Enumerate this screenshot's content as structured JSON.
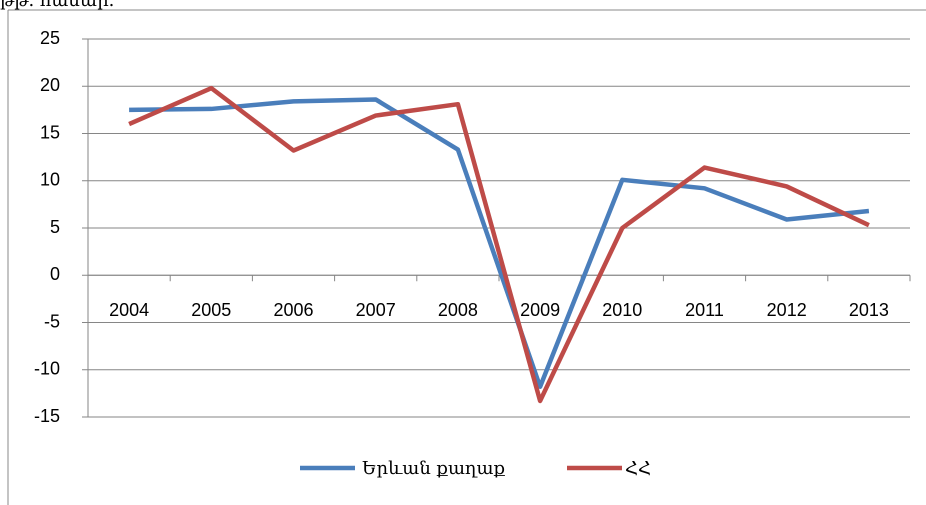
{
  "chart_data": {
    "type": "line",
    "title": "թթ. համար.",
    "categories": [
      "2004",
      "2005",
      "2006",
      "2007",
      "2008",
      "2009",
      "2010",
      "2011",
      "2012",
      "2013"
    ],
    "series": [
      {
        "name": "Երևան քաղաք",
        "color": "#4a7ebb",
        "values": [
          17.5,
          17.6,
          18.4,
          18.6,
          13.3,
          -11.8,
          10.1,
          9.2,
          5.9,
          6.8
        ]
      },
      {
        "name": "ՀՀ",
        "color": "#be4b48",
        "values": [
          16,
          19.8,
          13.2,
          16.9,
          18.1,
          -13.3,
          5,
          11.4,
          9.4,
          5.3
        ]
      }
    ],
    "ylim": [
      -15,
      25
    ],
    "yticks": [
      -15,
      -10,
      -5,
      0,
      5,
      10,
      15,
      20,
      25
    ],
    "grid": true,
    "legend": "bottom"
  }
}
